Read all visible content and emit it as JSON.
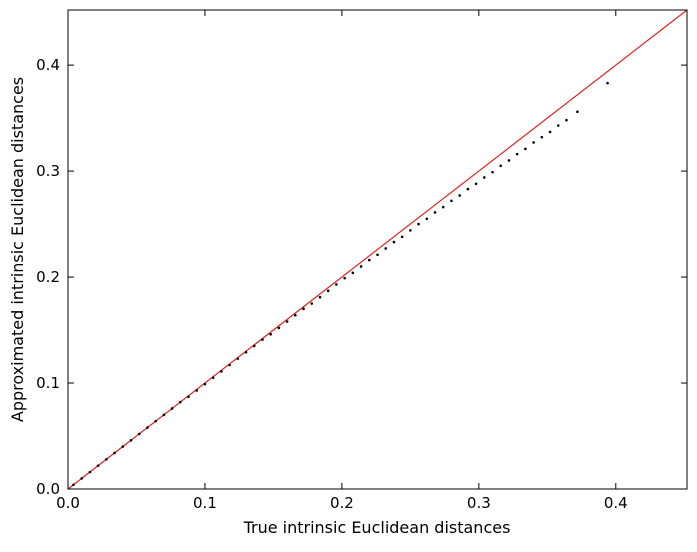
{
  "chart_data": {
    "type": "scatter",
    "title": "",
    "xlabel": "True intrinsic Euclidean distances",
    "ylabel": "Approximated intrinsic Euclidean distances",
    "xlim": [
      0.0,
      0.452
    ],
    "ylim": [
      0.0,
      0.452
    ],
    "xticks": [
      "0.0",
      "0.1",
      "0.2",
      "0.3",
      "0.4"
    ],
    "yticks": [
      "0.0",
      "0.1",
      "0.2",
      "0.3",
      "0.4"
    ],
    "grid": false,
    "reference_line": {
      "name": "",
      "color": "#dd2222",
      "x": [
        0.0,
        0.452
      ],
      "y": [
        0.0,
        0.452
      ]
    },
    "series": [
      {
        "name": "",
        "color": "#000000",
        "x": [
          0.004,
          0.01,
          0.016,
          0.022,
          0.028,
          0.034,
          0.04,
          0.046,
          0.052,
          0.058,
          0.064,
          0.07,
          0.076,
          0.082,
          0.088,
          0.094,
          0.1,
          0.106,
          0.112,
          0.118,
          0.124,
          0.13,
          0.136,
          0.142,
          0.148,
          0.154,
          0.16,
          0.166,
          0.172,
          0.178,
          0.184,
          0.19,
          0.196,
          0.202,
          0.208,
          0.214,
          0.22,
          0.226,
          0.232,
          0.238,
          0.244,
          0.25,
          0.256,
          0.262,
          0.268,
          0.274,
          0.28,
          0.286,
          0.292,
          0.298,
          0.304,
          0.31,
          0.316,
          0.322,
          0.328,
          0.334,
          0.34,
          0.346,
          0.352,
          0.358,
          0.364,
          0.372,
          0.394
        ],
        "y": [
          0.004,
          0.01,
          0.016,
          0.022,
          0.028,
          0.034,
          0.04,
          0.046,
          0.052,
          0.058,
          0.064,
          0.07,
          0.076,
          0.082,
          0.087,
          0.093,
          0.099,
          0.105,
          0.111,
          0.117,
          0.123,
          0.129,
          0.135,
          0.141,
          0.146,
          0.152,
          0.158,
          0.164,
          0.17,
          0.175,
          0.181,
          0.187,
          0.193,
          0.199,
          0.204,
          0.21,
          0.216,
          0.221,
          0.227,
          0.233,
          0.238,
          0.244,
          0.25,
          0.255,
          0.261,
          0.266,
          0.272,
          0.277,
          0.283,
          0.288,
          0.294,
          0.299,
          0.305,
          0.31,
          0.316,
          0.321,
          0.327,
          0.332,
          0.337,
          0.343,
          0.348,
          0.356,
          0.383
        ]
      }
    ]
  }
}
